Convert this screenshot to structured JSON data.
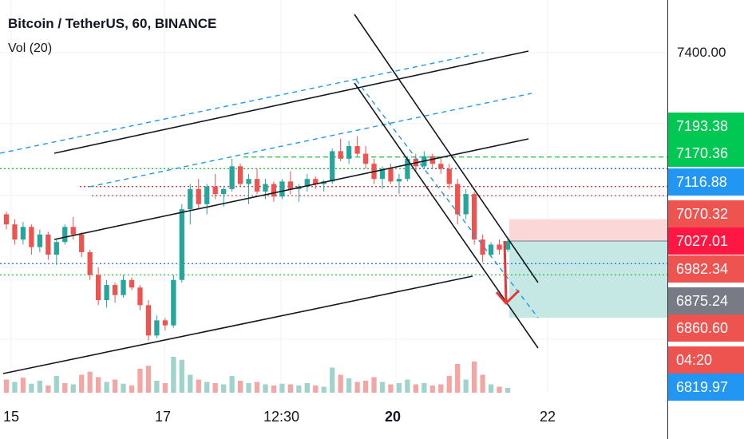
{
  "legend": {
    "title": "Bitcoin / TetherUS, 60, BINANCE",
    "volume": "Vol (20)"
  },
  "colors": {
    "up": "#26a69a",
    "down": "#ef5350",
    "vol_up": "#9fd3cc",
    "vol_down": "#f4a6a4",
    "channel": "#131722",
    "dashed_channel": "#2196f3",
    "green_level": "#1fbf3f",
    "red_level": "#e53935",
    "blue_level": "#2962ff",
    "stop_zone": "#fbd3d3",
    "target_zone": "#bfe6e1"
  },
  "chart_data": {
    "type": "candlestick",
    "symbol": "Bitcoin / TetherUS",
    "interval": "60",
    "exchange": "BINANCE",
    "indicator": "Vol (20)",
    "y_ticks": [
      "7400.00"
    ],
    "x_ticks": [
      {
        "label": "15",
        "bold": false
      },
      {
        "label": "17",
        "bold": false
      },
      {
        "label": "12:30",
        "bold": false
      },
      {
        "label": "20",
        "bold": true
      },
      {
        "label": "22",
        "bold": false
      }
    ],
    "price_tags": [
      {
        "label": "7193.38",
        "color": "#00c853",
        "price": 7193.38
      },
      {
        "label": "7170.36",
        "color": "#00c853",
        "price": 7170.36
      },
      {
        "label": "7116.88",
        "color": "#2196f3",
        "price": 7116.88
      },
      {
        "label": "7070.32",
        "color": "#ef5350",
        "price": 7070.32
      },
      {
        "label": "7027.01",
        "color": "#ff1744",
        "price": 7027.01
      },
      {
        "label": "6982.34",
        "color": "#ef5350",
        "price": 6982.34
      },
      {
        "label": "6875.24",
        "color": "#787b86",
        "price": 6875.24
      },
      {
        "label": "6860.60",
        "color": "#ef5350",
        "price": 6860.6
      },
      {
        "label": "04:20",
        "color": "#ef5350",
        "price": 6838
      },
      {
        "label": "6819.97",
        "color": "#2196f3",
        "price": 6819.97
      }
    ],
    "candles": [
      [
        7080,
        7085,
        7050,
        7060
      ],
      [
        7060,
        7070,
        7020,
        7030
      ],
      [
        7030,
        7065,
        7020,
        7055
      ],
      [
        7055,
        7060,
        7000,
        7015
      ],
      [
        7015,
        7050,
        7005,
        7040
      ],
      [
        7040,
        7045,
        6990,
        7000
      ],
      [
        7000,
        7030,
        6980,
        7025
      ],
      [
        7025,
        7060,
        7020,
        7055
      ],
      [
        7055,
        7075,
        7030,
        7040
      ],
      [
        7040,
        7045,
        6995,
        7005
      ],
      [
        7005,
        7010,
        6950,
        6960
      ],
      [
        6960,
        6975,
        6900,
        6910
      ],
      [
        6910,
        6950,
        6895,
        6940
      ],
      [
        6940,
        6945,
        6905,
        6920
      ],
      [
        6920,
        6960,
        6915,
        6950
      ],
      [
        6950,
        6955,
        6930,
        6935
      ],
      [
        6935,
        6940,
        6890,
        6900
      ],
      [
        6900,
        6910,
        6830,
        6840
      ],
      [
        6840,
        6880,
        6835,
        6870
      ],
      [
        6870,
        6875,
        6850,
        6860
      ],
      [
        6860,
        6960,
        6855,
        6950
      ],
      [
        6950,
        7100,
        6945,
        7090
      ],
      [
        7090,
        7140,
        7060,
        7130
      ],
      [
        7130,
        7150,
        7090,
        7100
      ],
      [
        7100,
        7140,
        7080,
        7135
      ],
      [
        7135,
        7160,
        7110,
        7120
      ],
      [
        7120,
        7135,
        7095,
        7130
      ],
      [
        7130,
        7190,
        7125,
        7175
      ],
      [
        7175,
        7180,
        7135,
        7140
      ],
      [
        7140,
        7160,
        7100,
        7150
      ],
      [
        7150,
        7170,
        7120,
        7125
      ],
      [
        7125,
        7150,
        7110,
        7140
      ],
      [
        7140,
        7145,
        7105,
        7115
      ],
      [
        7115,
        7150,
        7110,
        7145
      ],
      [
        7145,
        7165,
        7120,
        7130
      ],
      [
        7130,
        7140,
        7105,
        7135
      ],
      [
        7135,
        7160,
        7125,
        7150
      ],
      [
        7150,
        7155,
        7130,
        7140
      ],
      [
        7140,
        7148,
        7125,
        7145
      ],
      [
        7145,
        7210,
        7140,
        7205
      ],
      [
        7205,
        7230,
        7185,
        7190
      ],
      [
        7190,
        7225,
        7180,
        7215
      ],
      [
        7215,
        7235,
        7195,
        7200
      ],
      [
        7200,
        7215,
        7170,
        7180
      ],
      [
        7180,
        7190,
        7140,
        7150
      ],
      [
        7150,
        7175,
        7130,
        7170
      ],
      [
        7170,
        7180,
        7140,
        7145
      ],
      [
        7145,
        7160,
        7120,
        7150
      ],
      [
        7150,
        7195,
        7145,
        7190
      ],
      [
        7190,
        7200,
        7165,
        7175
      ],
      [
        7175,
        7205,
        7170,
        7195
      ],
      [
        7195,
        7200,
        7170,
        7180
      ],
      [
        7180,
        7195,
        7160,
        7170
      ],
      [
        7170,
        7180,
        7130,
        7140
      ],
      [
        7140,
        7150,
        7060,
        7080
      ],
      [
        7080,
        7130,
        7070,
        7120
      ],
      [
        7120,
        7125,
        7020,
        7030
      ],
      [
        7030,
        7040,
        6985,
        7000
      ],
      [
        7000,
        7025,
        6995,
        7020
      ],
      [
        7020,
        7030,
        7000,
        7010
      ],
      [
        7010,
        7035,
        7005,
        7027
      ]
    ],
    "volume": [
      [
        22,
        0
      ],
      [
        18,
        1
      ],
      [
        25,
        0
      ],
      [
        15,
        1
      ],
      [
        20,
        1
      ],
      [
        12,
        0
      ],
      [
        28,
        1
      ],
      [
        16,
        0
      ],
      [
        14,
        1
      ],
      [
        30,
        0
      ],
      [
        35,
        0
      ],
      [
        26,
        0
      ],
      [
        18,
        1
      ],
      [
        22,
        0
      ],
      [
        15,
        1
      ],
      [
        12,
        0
      ],
      [
        40,
        0
      ],
      [
        45,
        0
      ],
      [
        20,
        1
      ],
      [
        16,
        0
      ],
      [
        60,
        1
      ],
      [
        55,
        1
      ],
      [
        30,
        1
      ],
      [
        22,
        0
      ],
      [
        18,
        1
      ],
      [
        16,
        0
      ],
      [
        14,
        1
      ],
      [
        28,
        1
      ],
      [
        20,
        0
      ],
      [
        16,
        1
      ],
      [
        18,
        0
      ],
      [
        14,
        1
      ],
      [
        12,
        0
      ],
      [
        15,
        1
      ],
      [
        14,
        0
      ],
      [
        12,
        1
      ],
      [
        16,
        1
      ],
      [
        12,
        0
      ],
      [
        10,
        1
      ],
      [
        42,
        1
      ],
      [
        30,
        0
      ],
      [
        24,
        1
      ],
      [
        18,
        0
      ],
      [
        20,
        0
      ],
      [
        26,
        0
      ],
      [
        18,
        1
      ],
      [
        14,
        0
      ],
      [
        16,
        1
      ],
      [
        22,
        1
      ],
      [
        14,
        0
      ],
      [
        16,
        1
      ],
      [
        12,
        0
      ],
      [
        14,
        0
      ],
      [
        28,
        0
      ],
      [
        48,
        0
      ],
      [
        22,
        1
      ],
      [
        52,
        0
      ],
      [
        30,
        0
      ],
      [
        14,
        1
      ],
      [
        10,
        0
      ],
      [
        8,
        1
      ]
    ],
    "drawings": {
      "horizontal_levels": [
        {
          "price": 7193.38,
          "color": "#1fbf3f",
          "style": "dashed"
        },
        {
          "price": 7170.36,
          "color": "#1fbf3f",
          "style": "dotted"
        },
        {
          "price": 7170.36,
          "color": "#2962ff",
          "style": "dotted"
        },
        {
          "price": 7135,
          "color": "#e53935",
          "style": "dotted"
        },
        {
          "price": 7116.88,
          "color": "#e53935",
          "style": "dotted"
        },
        {
          "price": 6982.34,
          "color": "#2962ff",
          "style": "dotted"
        },
        {
          "price": 6960,
          "color": "#1fbf3f",
          "style": "dotted"
        }
      ],
      "position": {
        "entry": 7027.01,
        "stop": 7070.32,
        "target": 6875.24
      }
    }
  }
}
